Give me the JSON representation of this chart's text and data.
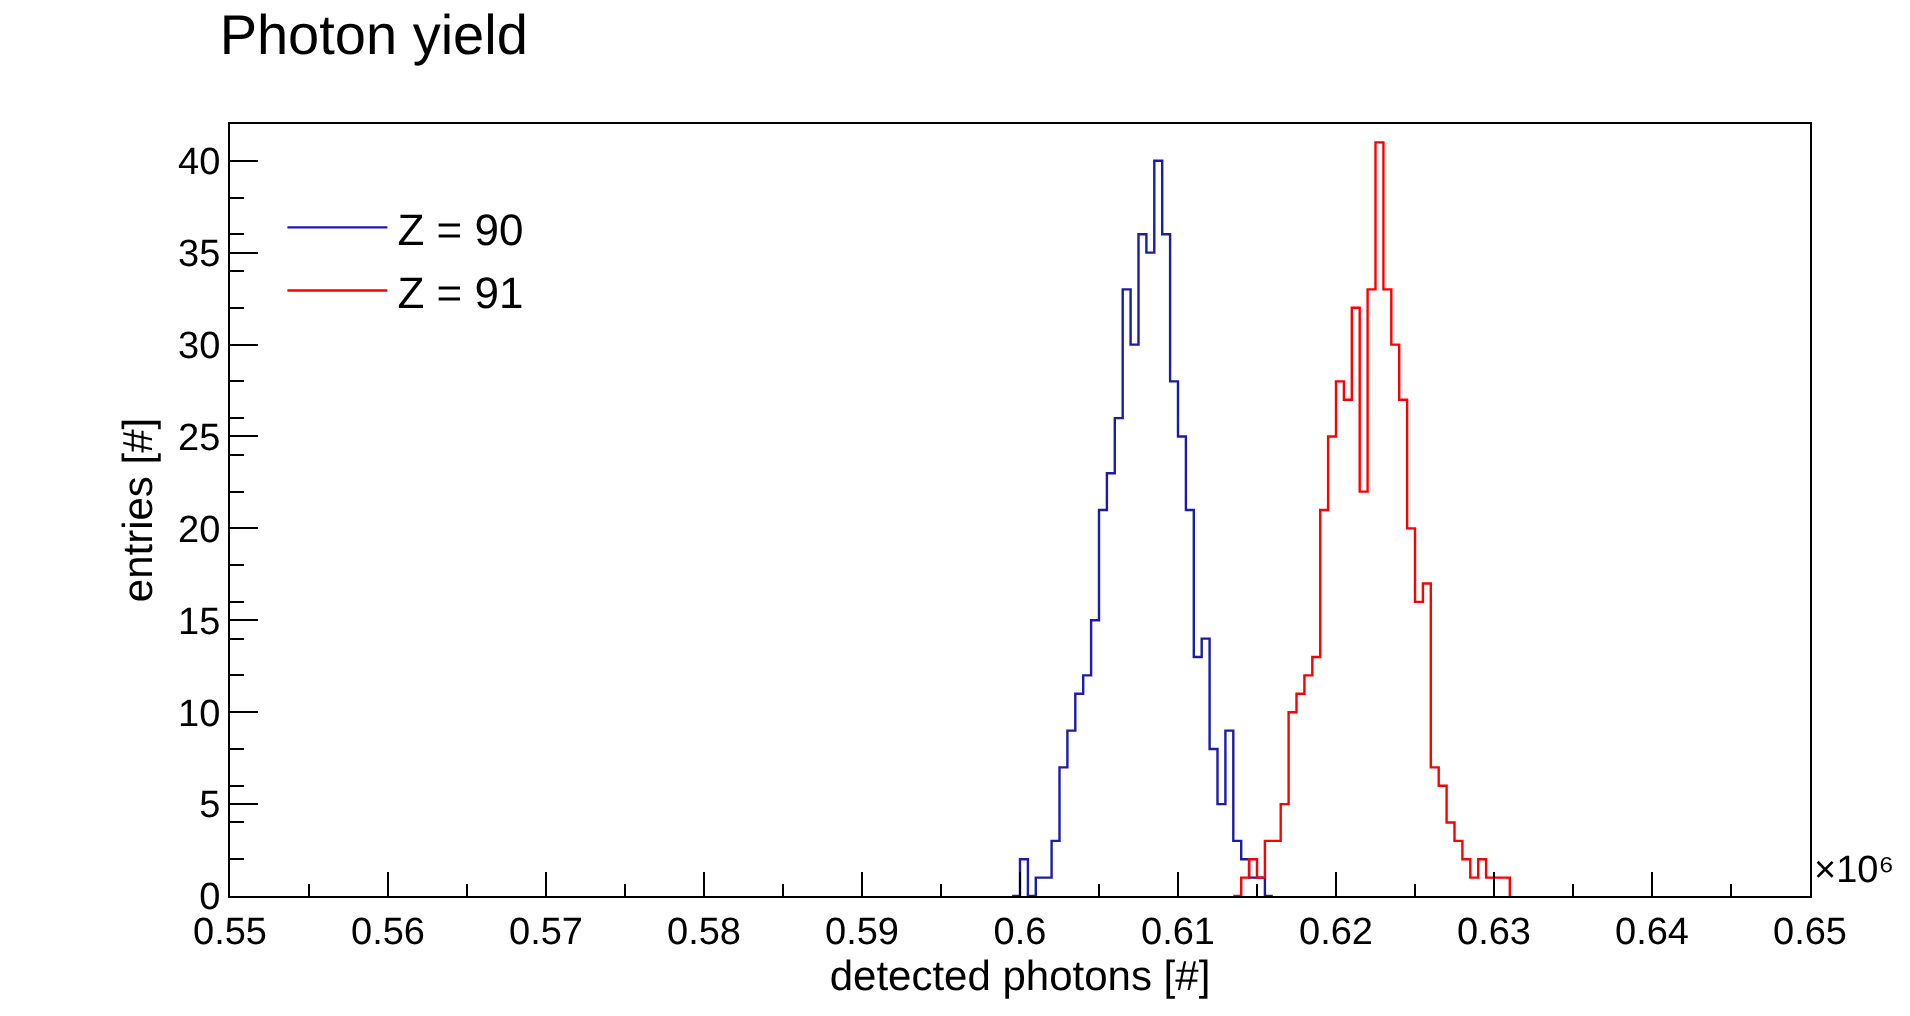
{
  "chart_data": {
    "type": "step",
    "title": "Photon yield",
    "xlabel": "detected photons [#]",
    "ylabel": "entries [#]",
    "annotations": [
      "×10⁶"
    ],
    "series": [
      {
        "name": "Z = 90",
        "color": "#1c1ca8",
        "x": [
          0.5995,
          0.6,
          0.6005,
          0.601,
          0.6015,
          0.602,
          0.6025,
          0.603,
          0.6035,
          0.604,
          0.6045,
          0.605,
          0.6055,
          0.606,
          0.6065,
          0.607,
          0.6075,
          0.608,
          0.6085,
          0.609,
          0.6095,
          0.61,
          0.6105,
          0.611,
          0.6115,
          0.612,
          0.6125,
          0.613,
          0.6135,
          0.614,
          0.6145,
          0.615,
          0.6155,
          0.616
        ],
        "values": [
          0,
          2,
          0,
          1,
          1,
          3,
          7,
          9,
          11,
          12,
          15,
          21,
          23,
          26,
          33,
          30,
          36,
          35,
          40,
          36,
          28,
          25,
          21,
          13,
          14,
          8,
          5,
          9,
          3,
          2,
          1,
          1,
          0,
          0
        ]
      },
      {
        "name": "Z = 91",
        "color": "#ff0000",
        "x": [
          0.6135,
          0.614,
          0.6145,
          0.615,
          0.6155,
          0.616,
          0.6165,
          0.617,
          0.6175,
          0.618,
          0.6185,
          0.619,
          0.6195,
          0.62,
          0.6205,
          0.621,
          0.6215,
          0.622,
          0.6225,
          0.623,
          0.6235,
          0.624,
          0.6245,
          0.625,
          0.6255,
          0.626,
          0.6265,
          0.627,
          0.6275,
          0.628,
          0.6285,
          0.629,
          0.6295,
          0.63,
          0.6305,
          0.631
        ],
        "values": [
          0,
          1,
          2,
          1,
          3,
          3,
          5,
          10,
          11,
          12,
          13,
          21,
          25,
          28,
          27,
          32,
          22,
          33,
          41,
          33,
          30,
          27,
          20,
          16,
          17,
          7,
          6,
          4,
          3,
          2,
          1,
          2,
          1,
          1,
          1,
          0
        ]
      }
    ],
    "xlim": [
      0.55,
      0.65
    ],
    "xticks": [
      0.55,
      0.56,
      0.57,
      0.58,
      0.59,
      0.6,
      0.61,
      0.62,
      0.63,
      0.64,
      0.65
    ],
    "ylim": [
      0,
      42
    ],
    "yticks": [
      0,
      5,
      10,
      15,
      20,
      25,
      30,
      35,
      40
    ],
    "legend": "top left"
  }
}
